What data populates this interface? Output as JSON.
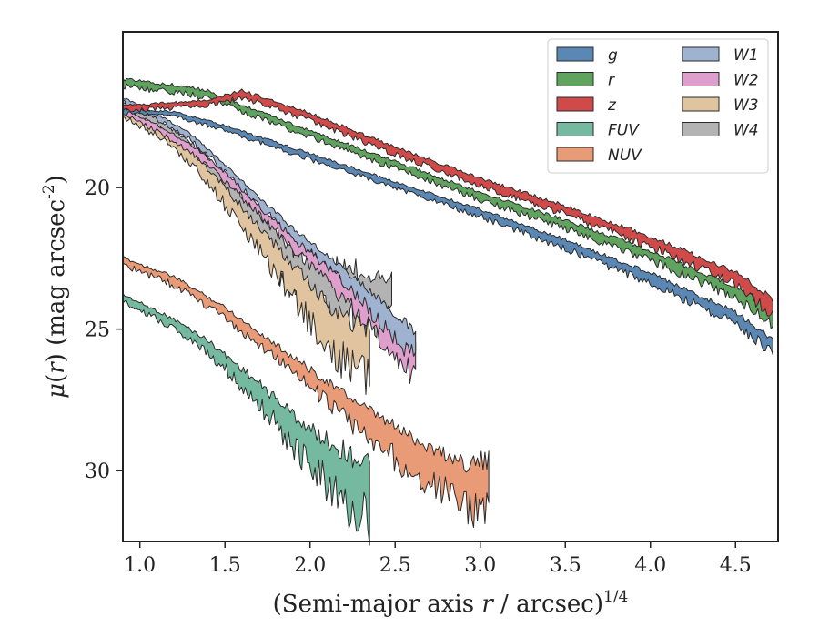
{
  "chart_data": {
    "type": "area",
    "xlabel": "(Semi-major axis r / arcsec)^(1/4)",
    "ylabel": "μ(r) (mag arcsec^-2)",
    "xlim": [
      0.9,
      4.75
    ],
    "ylim": [
      32.5,
      14.5
    ],
    "y_inverted": true,
    "xticks": [
      "1.0",
      "1.5",
      "2.0",
      "2.5",
      "3.0",
      "3.5",
      "4.0",
      "4.5"
    ],
    "yticks": [
      "20",
      "25",
      "30"
    ],
    "grid": false,
    "legend": {
      "placement": "top-right",
      "columns": 2
    },
    "series": [
      {
        "name": "g",
        "color": "#5a87b3",
        "x": [
          0.9,
          1.2,
          1.5,
          2.0,
          2.5,
          3.0,
          3.5,
          4.0,
          4.5,
          4.72
        ],
        "center": [
          17.3,
          17.4,
          17.9,
          18.9,
          19.9,
          20.9,
          22.0,
          23.2,
          24.6,
          25.6
        ],
        "width": [
          0.15,
          0.15,
          0.18,
          0.2,
          0.2,
          0.25,
          0.3,
          0.35,
          0.4,
          0.5
        ]
      },
      {
        "name": "r",
        "color": "#5fa35f",
        "x": [
          0.9,
          1.2,
          1.4,
          1.6,
          2.0,
          2.5,
          3.0,
          3.5,
          4.0,
          4.5,
          4.72
        ],
        "center": [
          16.3,
          16.5,
          16.7,
          17.2,
          18.1,
          19.2,
          20.3,
          21.3,
          22.4,
          23.7,
          24.6
        ],
        "width": [
          0.25,
          0.25,
          0.25,
          0.22,
          0.22,
          0.25,
          0.25,
          0.3,
          0.35,
          0.4,
          0.5
        ]
      },
      {
        "name": "z",
        "color": "#d14a4a",
        "x": [
          0.9,
          1.2,
          1.4,
          1.6,
          2.0,
          2.5,
          3.0,
          3.5,
          4.0,
          4.5,
          4.72
        ],
        "center": [
          17.2,
          17.1,
          17.0,
          16.7,
          17.5,
          18.7,
          19.8,
          20.8,
          21.9,
          23.2,
          24.2
        ],
        "width": [
          0.2,
          0.2,
          0.2,
          0.25,
          0.25,
          0.25,
          0.25,
          0.3,
          0.35,
          0.45,
          0.55
        ]
      },
      {
        "name": "FUV",
        "color": "#75b9a0",
        "x": [
          0.9,
          1.2,
          1.4,
          1.6,
          1.8,
          2.0,
          2.2,
          2.35
        ],
        "center": [
          23.9,
          24.8,
          25.6,
          26.7,
          27.9,
          29.2,
          30.2,
          30.8
        ],
        "width": [
          0.25,
          0.3,
          0.4,
          0.6,
          0.9,
          1.3,
          1.8,
          2.0
        ]
      },
      {
        "name": "NUV",
        "color": "#e99b78",
        "x": [
          0.9,
          1.2,
          1.5,
          1.8,
          2.1,
          2.4,
          2.7,
          2.9,
          3.05
        ],
        "center": [
          22.6,
          23.3,
          24.4,
          25.8,
          27.2,
          28.6,
          29.8,
          30.5,
          30.6
        ],
        "width": [
          0.25,
          0.3,
          0.35,
          0.5,
          0.7,
          1.0,
          1.3,
          1.6,
          1.8
        ]
      },
      {
        "name": "W1",
        "color": "#9fb2d0",
        "x": [
          0.9,
          1.1,
          1.3,
          1.5,
          1.7,
          1.9,
          2.1,
          2.3,
          2.5,
          2.62
        ],
        "center": [
          16.9,
          17.5,
          18.2,
          19.3,
          20.5,
          21.6,
          22.6,
          23.7,
          24.9,
          25.5
        ],
        "width": [
          0.15,
          0.2,
          0.2,
          0.25,
          0.3,
          0.35,
          0.4,
          0.6,
          0.8,
          0.9
        ]
      },
      {
        "name": "W2",
        "color": "#de9fcd",
        "x": [
          0.9,
          1.1,
          1.3,
          1.5,
          1.7,
          1.9,
          2.1,
          2.3,
          2.5,
          2.62
        ],
        "center": [
          17.3,
          17.9,
          18.6,
          19.6,
          20.8,
          21.9,
          23.0,
          24.2,
          25.5,
          26.1
        ],
        "width": [
          0.2,
          0.25,
          0.25,
          0.3,
          0.35,
          0.45,
          0.6,
          0.8,
          1.0,
          1.1
        ]
      },
      {
        "name": "W3",
        "color": "#e0c49f",
        "x": [
          0.9,
          1.1,
          1.3,
          1.5,
          1.7,
          1.9,
          2.1,
          2.25,
          2.35
        ],
        "center": [
          17.4,
          18.0,
          18.9,
          20.3,
          21.8,
          23.3,
          24.8,
          25.6,
          25.9
        ],
        "width": [
          0.25,
          0.3,
          0.4,
          0.6,
          0.8,
          1.1,
          1.4,
          1.7,
          1.8
        ]
      },
      {
        "name": "W4",
        "color": "#b3b3b3",
        "x": [
          0.9,
          1.1,
          1.3,
          1.5,
          1.7,
          1.9,
          2.1,
          2.3,
          2.48
        ],
        "center": [
          17.1,
          17.7,
          18.6,
          19.9,
          21.4,
          22.9,
          23.6,
          23.9,
          23.8
        ],
        "width": [
          0.2,
          0.3,
          0.4,
          0.7,
          1.0,
          1.4,
          1.7,
          1.9,
          1.4
        ]
      }
    ]
  }
}
